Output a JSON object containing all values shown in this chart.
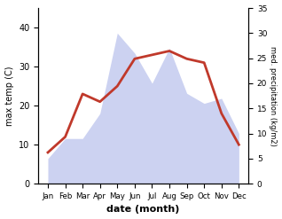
{
  "months": [
    "Jan",
    "Feb",
    "Mar",
    "Apr",
    "May",
    "Jun",
    "Jul",
    "Aug",
    "Sep",
    "Oct",
    "Nov",
    "Dec"
  ],
  "temperature": [
    8,
    12,
    23,
    21,
    25,
    32,
    33,
    34,
    32,
    31,
    18,
    10
  ],
  "precipitation": [
    5,
    9,
    9,
    14,
    30,
    26,
    20,
    27,
    18,
    16,
    17,
    10
  ],
  "temp_color": "#c0392b",
  "precip_color": "#aab4e8",
  "precip_fill_alpha": 0.6,
  "xlabel": "date (month)",
  "ylabel_left": "max temp (C)",
  "ylabel_right": "med. precipitation (kg/m2)",
  "ylim_left": [
    0,
    45
  ],
  "ylim_right": [
    0,
    35
  ],
  "yticks_left": [
    0,
    10,
    20,
    30,
    40
  ],
  "yticks_right": [
    0,
    5,
    10,
    15,
    20,
    25,
    30,
    35
  ],
  "line_width": 2.0,
  "bg_color": "#ffffff"
}
